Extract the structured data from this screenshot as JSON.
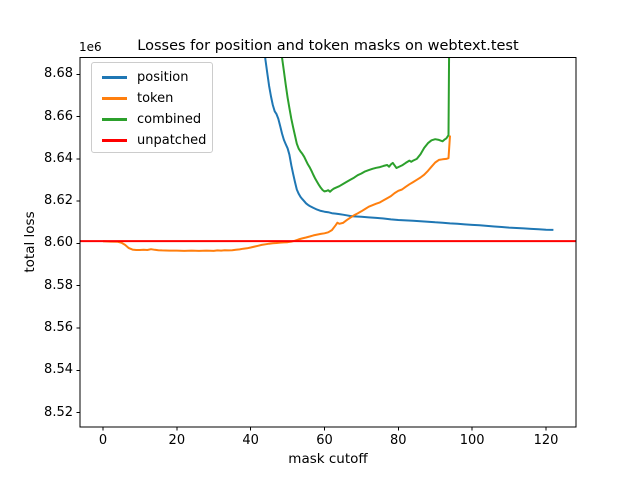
{
  "chart_data": {
    "type": "line",
    "title": "Losses for position and token masks on webtext.test",
    "xlabel": "mask cutoff",
    "ylabel": "total loss",
    "y_offset_label": "1e6",
    "grid": false,
    "x_axis": {
      "min": -6.23,
      "max": 128.13,
      "ticks": [
        0,
        20,
        40,
        60,
        80,
        100,
        120
      ],
      "tick_labels": [
        "0",
        "20",
        "40",
        "60",
        "80",
        "100",
        "120"
      ]
    },
    "y_axis": {
      "min": 8.5131,
      "max": 8.6879,
      "unit_multiplier": 1000000,
      "ticks": [
        8.52,
        8.54,
        8.56,
        8.58,
        8.6,
        8.62,
        8.64,
        8.66,
        8.68
      ],
      "tick_labels": [
        "8.52",
        "8.54",
        "8.56",
        "8.58",
        "8.60",
        "8.62",
        "8.64",
        "8.66",
        "8.68"
      ]
    },
    "legend": {
      "location": "upper left",
      "entries": [
        "position",
        "token",
        "combined",
        "unpatched"
      ]
    },
    "series": [
      {
        "name": "position",
        "color": "#1f77b4",
        "points": [
          [
            43.2,
            8.702
          ],
          [
            44,
            8.687
          ],
          [
            44.5,
            8.6805
          ],
          [
            45,
            8.6745
          ],
          [
            45.5,
            8.6695
          ],
          [
            46,
            8.6655
          ],
          [
            46.5,
            8.6625
          ],
          [
            47,
            8.6612
          ],
          [
            47.5,
            8.659
          ],
          [
            48,
            8.6555
          ],
          [
            48.5,
            8.652
          ],
          [
            49,
            8.649
          ],
          [
            49.5,
            8.647
          ],
          [
            50,
            8.645
          ],
          [
            50.5,
            8.642
          ],
          [
            51,
            8.637
          ],
          [
            51.5,
            8.633
          ],
          [
            52,
            8.629
          ],
          [
            52.5,
            8.6255
          ],
          [
            53,
            8.6235
          ],
          [
            53.5,
            8.622
          ],
          [
            54,
            8.621
          ],
          [
            54.5,
            8.62
          ],
          [
            55,
            8.619
          ],
          [
            55.5,
            8.6183
          ],
          [
            56,
            8.6177
          ],
          [
            57,
            8.6168
          ],
          [
            58,
            8.616
          ],
          [
            59,
            8.6154
          ],
          [
            60,
            8.615
          ],
          [
            61,
            8.6148
          ],
          [
            62,
            8.6143
          ],
          [
            63,
            8.6141
          ],
          [
            64,
            8.6139
          ],
          [
            65,
            8.6136
          ],
          [
            66,
            8.6133
          ],
          [
            67,
            8.613
          ],
          [
            68,
            8.6128
          ],
          [
            70,
            8.6126
          ],
          [
            72,
            8.6123
          ],
          [
            74,
            8.6121
          ],
          [
            76,
            8.6118
          ],
          [
            78,
            8.6114
          ],
          [
            80,
            8.6111
          ],
          [
            82,
            8.6109
          ],
          [
            84,
            8.6107
          ],
          [
            86,
            8.6105
          ],
          [
            88,
            8.6103
          ],
          [
            90,
            8.61
          ],
          [
            92,
            8.6098
          ],
          [
            94,
            8.6095
          ],
          [
            96,
            8.6093
          ],
          [
            98,
            8.609
          ],
          [
            100,
            8.6088
          ],
          [
            102,
            8.6086
          ],
          [
            104,
            8.6083
          ],
          [
            106,
            8.608
          ],
          [
            108,
            8.6078
          ],
          [
            110,
            8.6075
          ],
          [
            112,
            8.6073
          ],
          [
            114,
            8.6071
          ],
          [
            116,
            8.6069
          ],
          [
            118,
            8.6067
          ],
          [
            120,
            8.6065
          ],
          [
            122,
            8.6064
          ]
        ]
      },
      {
        "name": "token",
        "color": "#ff7f0e",
        "points": [
          [
            0,
            8.601
          ],
          [
            2,
            8.6009
          ],
          [
            4,
            8.6008
          ],
          [
            5,
            8.6003
          ],
          [
            6,
            8.5993
          ],
          [
            7,
            8.5978
          ],
          [
            8,
            8.5971
          ],
          [
            9,
            8.5969
          ],
          [
            10,
            8.5969
          ],
          [
            11,
            8.597
          ],
          [
            12,
            8.5969
          ],
          [
            13,
            8.5973
          ],
          [
            14,
            8.597
          ],
          [
            15,
            8.5968
          ],
          [
            16,
            8.5967
          ],
          [
            18,
            8.5966
          ],
          [
            20,
            8.5966
          ],
          [
            22,
            8.5965
          ],
          [
            24,
            8.5966
          ],
          [
            26,
            8.5965
          ],
          [
            28,
            8.5966
          ],
          [
            30,
            8.5965
          ],
          [
            31,
            8.5967
          ],
          [
            32,
            8.5966
          ],
          [
            33,
            8.5968
          ],
          [
            34,
            8.5967
          ],
          [
            35,
            8.5968
          ],
          [
            36,
            8.597
          ],
          [
            37,
            8.5972
          ],
          [
            38,
            8.5975
          ],
          [
            39,
            8.5977
          ],
          [
            40,
            8.5981
          ],
          [
            41,
            8.5985
          ],
          [
            42,
            8.5989
          ],
          [
            43,
            8.5993
          ],
          [
            44,
            8.5996
          ],
          [
            45,
            8.5999
          ],
          [
            46,
            8.6001
          ],
          [
            47,
            8.6002
          ],
          [
            48,
            8.6004
          ],
          [
            49,
            8.6005
          ],
          [
            50,
            8.6006
          ],
          [
            51,
            8.6009
          ],
          [
            52,
            8.6013
          ],
          [
            53,
            8.6019
          ],
          [
            54,
            8.6024
          ],
          [
            55,
            8.6028
          ],
          [
            56,
            8.6033
          ],
          [
            57,
            8.6038
          ],
          [
            58,
            8.6042
          ],
          [
            59,
            8.6045
          ],
          [
            60,
            8.6048
          ],
          [
            61,
            8.6053
          ],
          [
            62,
            8.6063
          ],
          [
            63,
            8.6086
          ],
          [
            63.5,
            8.6098
          ],
          [
            64,
            8.6093
          ],
          [
            65,
            8.6097
          ],
          [
            66,
            8.611
          ],
          [
            67,
            8.6122
          ],
          [
            68,
            8.6133
          ],
          [
            69,
            8.6142
          ],
          [
            70,
            8.6152
          ],
          [
            71,
            8.6163
          ],
          [
            72,
            8.6174
          ],
          [
            73,
            8.6181
          ],
          [
            74,
            8.6188
          ],
          [
            75,
            8.6194
          ],
          [
            76,
            8.6204
          ],
          [
            77,
            8.6214
          ],
          [
            78,
            8.6224
          ],
          [
            79,
            8.6238
          ],
          [
            80,
            8.6249
          ],
          [
            81,
            8.6255
          ],
          [
            82,
            8.6268
          ],
          [
            83,
            8.628
          ],
          [
            84,
            8.629
          ],
          [
            85,
            8.6301
          ],
          [
            86,
            8.6312
          ],
          [
            87,
            8.6325
          ],
          [
            88,
            8.6343
          ],
          [
            89,
            8.6363
          ],
          [
            90,
            8.6383
          ],
          [
            91,
            8.6395
          ],
          [
            92,
            8.6398
          ],
          [
            93,
            8.64
          ],
          [
            93.6,
            8.6403
          ],
          [
            94,
            8.651
          ]
        ]
      },
      {
        "name": "combined",
        "color": "#2ca02c",
        "points": [
          [
            47.8,
            8.705
          ],
          [
            48.5,
            8.688
          ],
          [
            49,
            8.6815
          ],
          [
            49.5,
            8.6752
          ],
          [
            50,
            8.669
          ],
          [
            50.5,
            8.664
          ],
          [
            51,
            8.659
          ],
          [
            51.5,
            8.655
          ],
          [
            52,
            8.651
          ],
          [
            52.5,
            8.6472
          ],
          [
            53,
            8.6448
          ],
          [
            53.5,
            8.6435
          ],
          [
            54,
            8.6424
          ],
          [
            54.5,
            8.641
          ],
          [
            55,
            8.6392
          ],
          [
            55.5,
            8.6374
          ],
          [
            56,
            8.636
          ],
          [
            56.5,
            8.6342
          ],
          [
            57,
            8.6324
          ],
          [
            57.5,
            8.6306
          ],
          [
            58,
            8.6291
          ],
          [
            58.5,
            8.6276
          ],
          [
            59,
            8.6263
          ],
          [
            59.5,
            8.6253
          ],
          [
            60,
            8.6246
          ],
          [
            60.5,
            8.6248
          ],
          [
            61,
            8.6252
          ],
          [
            61.5,
            8.6245
          ],
          [
            62,
            8.6253
          ],
          [
            62.5,
            8.6259
          ],
          [
            63,
            8.6263
          ],
          [
            64,
            8.6271
          ],
          [
            65,
            8.6281
          ],
          [
            66,
            8.6291
          ],
          [
            67,
            8.6301
          ],
          [
            68,
            8.6311
          ],
          [
            69,
            8.6323
          ],
          [
            70,
            8.6331
          ],
          [
            71,
            8.6341
          ],
          [
            72,
            8.6347
          ],
          [
            73,
            8.6353
          ],
          [
            74,
            8.6358
          ],
          [
            75,
            8.6361
          ],
          [
            76,
            8.6367
          ],
          [
            77,
            8.6371
          ],
          [
            77.5,
            8.6363
          ],
          [
            78,
            8.6374
          ],
          [
            78.5,
            8.6381
          ],
          [
            79,
            8.6369
          ],
          [
            79.5,
            8.6357
          ],
          [
            80,
            8.6361
          ],
          [
            81,
            8.6369
          ],
          [
            82,
            8.6381
          ],
          [
            83,
            8.6392
          ],
          [
            83.5,
            8.6386
          ],
          [
            84,
            8.6392
          ],
          [
            85,
            8.64
          ],
          [
            86,
            8.6422
          ],
          [
            87,
            8.6452
          ],
          [
            88,
            8.6474
          ],
          [
            89,
            8.6488
          ],
          [
            90,
            8.6493
          ],
          [
            91,
            8.649
          ],
          [
            92,
            8.6483
          ],
          [
            92.5,
            8.6491
          ],
          [
            93,
            8.6497
          ],
          [
            93.6,
            8.6512
          ],
          [
            94,
            8.75
          ]
        ]
      },
      {
        "name": "unpatched",
        "color": "#ff0000",
        "hline": true,
        "y": 8.6011
      }
    ]
  }
}
